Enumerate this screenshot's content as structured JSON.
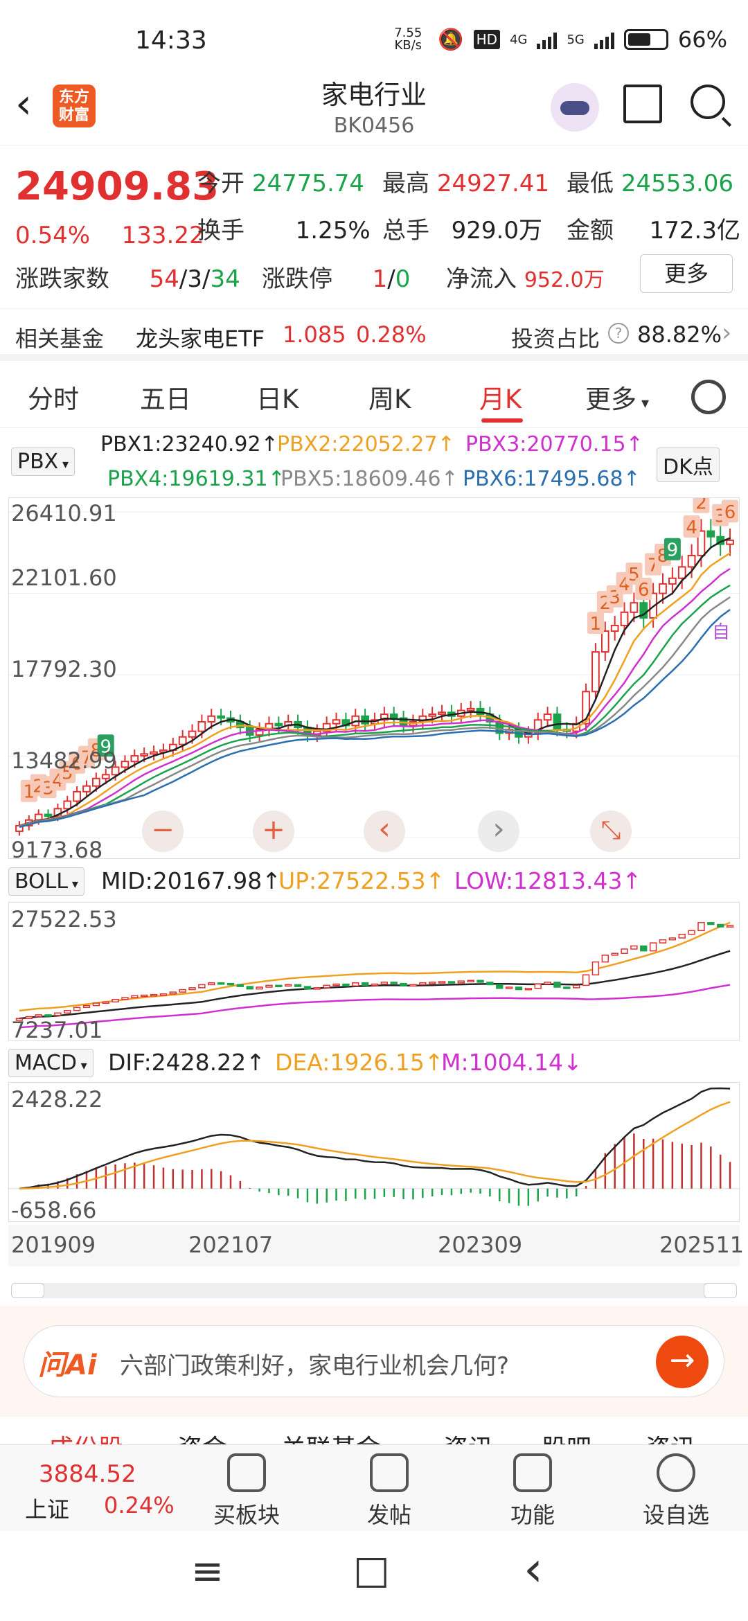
{
  "status": {
    "time": "14:33",
    "speed": "7.55 KB/s",
    "net1": "4G",
    "net2": "5G",
    "battery": "66%"
  },
  "header": {
    "logo": "东方财富",
    "title": "家电行业",
    "code": "BK0456"
  },
  "quote": {
    "price": "24909.83",
    "pct": "0.54%",
    "chg": "133.22",
    "open_label": "今开",
    "open": "24775.74",
    "high_label": "最高",
    "high": "24927.41",
    "low_label": "最低",
    "low": "24553.06",
    "turnover_label": "换手",
    "turnover": "1.25%",
    "volume_label": "总手",
    "volume": "929.0万",
    "amount_label": "金额",
    "amount": "172.3亿",
    "updown_label": "涨跌家数",
    "up": "54",
    "flat": "3",
    "down": "34",
    "limit_label": "涨跌停",
    "limit_up": "1",
    "limit_down": "0",
    "inflow_label": "净流入",
    "inflow": "952.0万",
    "more": "更多"
  },
  "fund": {
    "label": "相关基金",
    "name": "龙头家电ETF",
    "price": "1.085",
    "pct": "0.28%",
    "ratio_label": "投资占比",
    "ratio": "88.82%"
  },
  "tabs": [
    "分时",
    "五日",
    "日K",
    "周K",
    "月K",
    "更多"
  ],
  "pbx": {
    "selector": "PBX",
    "dk": "DK点",
    "items": [
      "PBX1:23240.92↑",
      "PBX2:22052.27↑",
      "PBX3:20770.15↑",
      "PBX4:19619.31↑",
      "PBX5:18609.46↑",
      "PBX6:17495.68↑"
    ],
    "colors": [
      "#222222",
      "#f0a020",
      "#d030d0",
      "#1aa34a",
      "#888888",
      "#2a6fb0"
    ]
  },
  "boll": {
    "selector": "BOLL",
    "mid": "MID:20167.98↑",
    "up": "UP:27522.53↑",
    "low": "LOW:12813.43↑"
  },
  "macd": {
    "selector": "MACD",
    "dif": "DIF:2428.22↑",
    "dea": "DEA:1926.15↑",
    "m": "M:1004.14↓"
  },
  "chart_data": [
    {
      "type": "candlestick",
      "title": "",
      "y_tick_labels": [
        "26410.91",
        "22101.60",
        "17792.30",
        "13482.99",
        "9173.68"
      ],
      "ylim": [
        9173.68,
        26410.91
      ],
      "x_tick_labels": [
        "201909",
        "202107",
        "202309",
        "202511"
      ],
      "close_series": [
        9800,
        10100,
        10400,
        10300,
        10700,
        11100,
        11600,
        11900,
        12300,
        12500,
        12900,
        13200,
        13500,
        13600,
        13700,
        13800,
        14100,
        14500,
        14800,
        15300,
        15600,
        15500,
        15300,
        15000,
        14600,
        14900,
        15200,
        15100,
        15300,
        15000,
        14600,
        14800,
        15200,
        15400,
        15100,
        15600,
        15200,
        15400,
        15700,
        15500,
        15100,
        15300,
        15600,
        15700,
        15800,
        15600,
        15900,
        16000,
        15700,
        15300,
        14700,
        14900,
        14500,
        14700,
        15400,
        15700,
        14900,
        14800,
        15200,
        16900,
        19000,
        20100,
        20400,
        21100,
        21600,
        20800,
        22100,
        22600,
        22900,
        23500,
        24100,
        25400,
        25100,
        24700,
        24910
      ],
      "markers": [
        "1",
        "2",
        "3",
        "4",
        "5",
        "6",
        "7",
        "8",
        "9",
        "9",
        "1",
        "2",
        "3",
        "4",
        "5",
        "6",
        "7",
        "8",
        "9",
        "2",
        "3",
        "4",
        "6"
      ],
      "overlay_labels": [
        "自"
      ]
    },
    {
      "type": "line",
      "title": "",
      "y_tick_labels": [
        "27522.53",
        "7237.01"
      ],
      "ylim": [
        7237.01,
        27522.53
      ],
      "series": [
        {
          "name": "MID",
          "values": [
            20167.98
          ]
        },
        {
          "name": "UP",
          "values": [
            27522.53
          ]
        },
        {
          "name": "LOW",
          "values": [
            12813.43
          ]
        }
      ]
    },
    {
      "type": "bar",
      "title": "",
      "y_tick_labels": [
        "2428.22",
        "-658.66"
      ],
      "ylim": [
        -658.66,
        2428.22
      ],
      "series": [
        {
          "name": "DIF",
          "values": [
            2428.22
          ]
        },
        {
          "name": "DEA",
          "values": [
            1926.15
          ]
        },
        {
          "name": "M",
          "values": [
            1004.14
          ]
        }
      ]
    }
  ],
  "zoom_controls": [
    "−",
    "+",
    "‹",
    "›",
    "⤡"
  ],
  "ask": {
    "logo": "问Ai",
    "prompt": "六部门政策利好，家电行业机会几何?"
  },
  "bottom_tabs": [
    "成份股",
    "资金",
    "关联基金",
    "资讯",
    "股吧",
    "资讯"
  ],
  "bottom_nav": {
    "index_value": "3884.52",
    "index_name": "上证",
    "index_pct": "0.24%",
    "items": [
      "买板块",
      "发帖",
      "功能",
      "设自选"
    ]
  },
  "sysnav": [
    "≡",
    "□",
    "‹"
  ]
}
